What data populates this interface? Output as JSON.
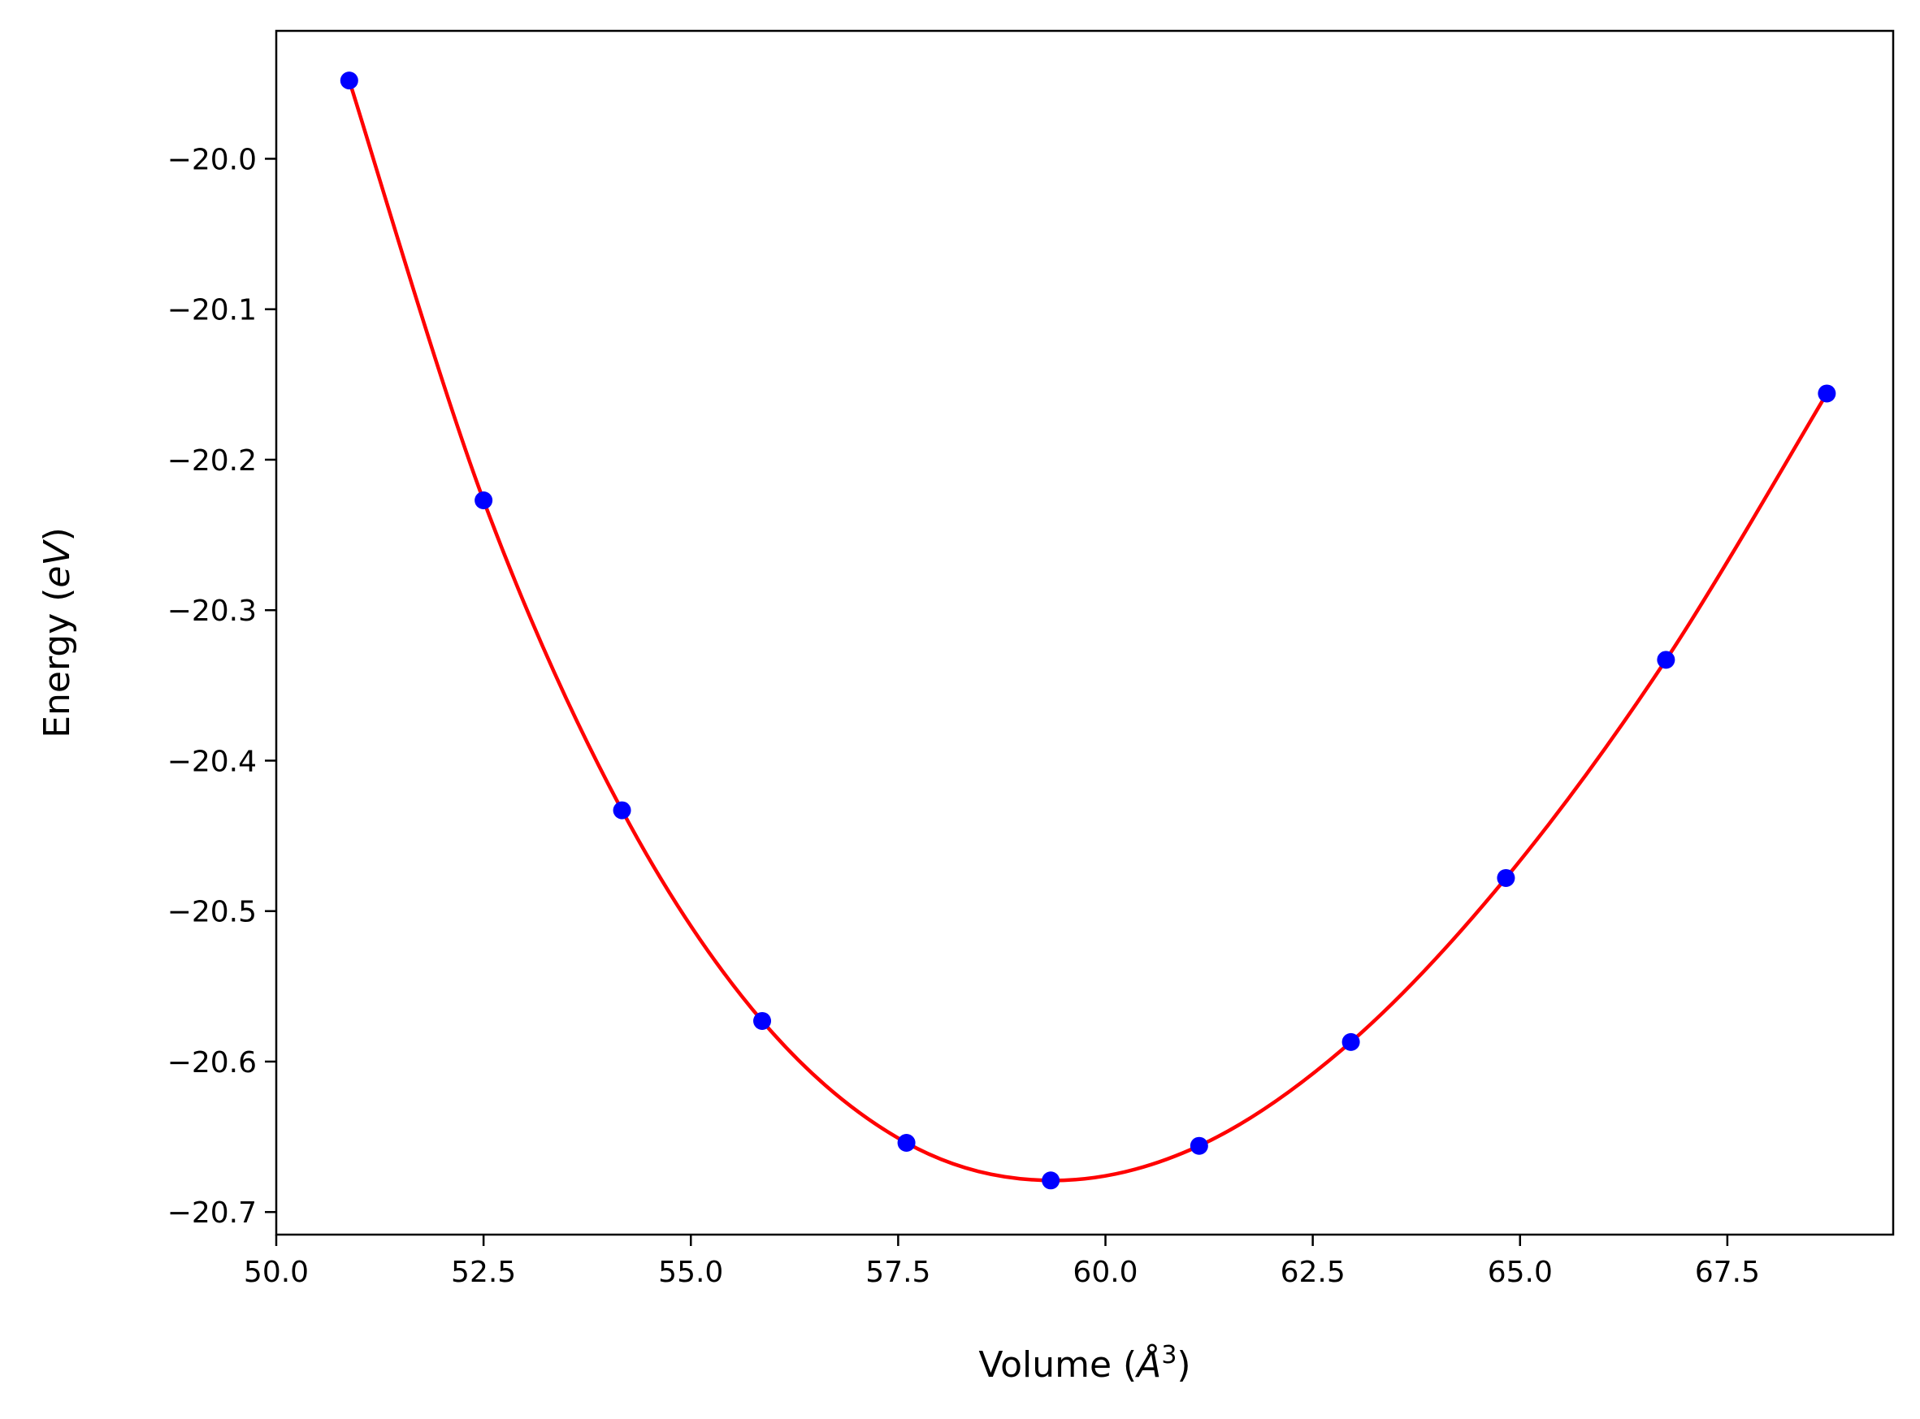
{
  "chart_data": {
    "type": "line",
    "title": "",
    "xlabel": {
      "prefix": "Volume (",
      "symbol": "Å",
      "exponent": "3",
      "suffix": ")"
    },
    "ylabel": {
      "prefix": "Energy (",
      "italic": "eV",
      "suffix": ")"
    },
    "xlim": [
      50.0,
      69.5
    ],
    "ylim": [
      -20.715,
      -19.915
    ],
    "xticks": [
      50.0,
      52.5,
      55.0,
      57.5,
      60.0,
      62.5,
      65.0,
      67.5
    ],
    "xtick_labels": [
      "50.0",
      "52.5",
      "55.0",
      "57.5",
      "60.0",
      "62.5",
      "65.0",
      "67.5"
    ],
    "yticks": [
      -20.0,
      -20.1,
      -20.2,
      -20.3,
      -20.4,
      -20.5,
      -20.6,
      -20.7
    ],
    "ytick_labels": [
      "−20.0",
      "−20.1",
      "−20.2",
      "−20.3",
      "−20.4",
      "−20.5",
      "−20.6",
      "−20.7"
    ],
    "grid": false,
    "series": [
      {
        "kind": "scatter",
        "color": "#0000ff",
        "x": [
          50.88,
          52.5,
          54.17,
          55.86,
          57.6,
          59.34,
          61.13,
          62.96,
          64.83,
          66.76,
          68.7
        ],
        "y": [
          -19.948,
          -20.227,
          -20.433,
          -20.573,
          -20.654,
          -20.679,
          -20.656,
          -20.587,
          -20.478,
          -20.333,
          -20.156
        ]
      },
      {
        "kind": "line",
        "color": "#ff0000",
        "x": [
          50.88,
          52.5,
          54.17,
          55.86,
          57.6,
          59.34,
          61.13,
          62.96,
          64.83,
          66.76,
          68.7
        ],
        "y": [
          -19.948,
          -20.227,
          -20.433,
          -20.573,
          -20.654,
          -20.679,
          -20.656,
          -20.587,
          -20.478,
          -20.333,
          -20.156
        ]
      }
    ]
  }
}
